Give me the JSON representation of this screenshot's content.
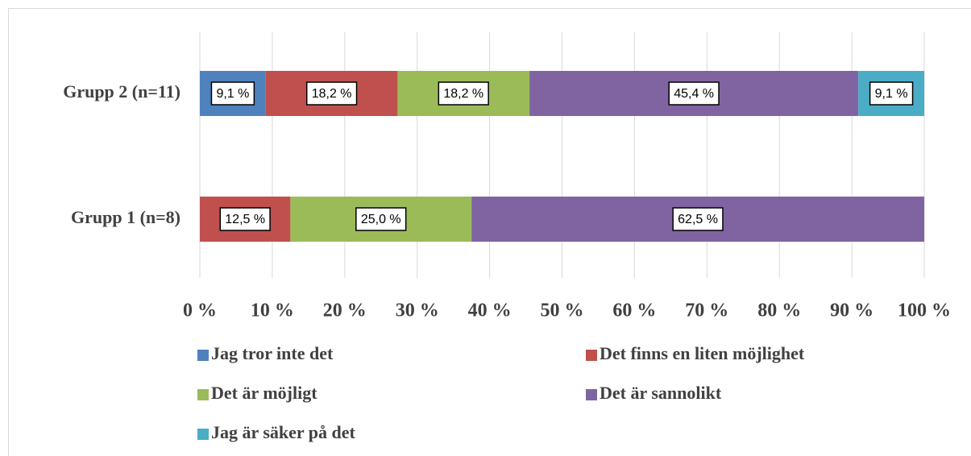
{
  "chart_data": {
    "type": "stacked-barh",
    "categories": [
      "Grupp 2 (n=11)",
      "Grupp 1 (n=8)"
    ],
    "series": [
      {
        "name": "Jag tror inte det",
        "color": "#4f81bd",
        "values": [
          9.1,
          null
        ],
        "value_labels": [
          "9,1 %",
          null
        ]
      },
      {
        "name": "Det finns en liten möjlighet",
        "color": "#c0504d",
        "values": [
          18.2,
          12.5
        ],
        "value_labels": [
          "18,2 %",
          "12,5 %"
        ]
      },
      {
        "name": "Det är möjligt",
        "color": "#9bbb59",
        "values": [
          18.2,
          25.0
        ],
        "value_labels": [
          "18,2 %",
          "25,0 %"
        ]
      },
      {
        "name": "Det är sannolikt",
        "color": "#8064a2",
        "values": [
          45.4,
          62.5
        ],
        "value_labels": [
          "45,4 %",
          "62,5 %"
        ]
      },
      {
        "name": "Jag är säker på det",
        "color": "#4bacc6",
        "values": [
          9.1,
          null
        ],
        "value_labels": [
          "9,1 %",
          null
        ]
      }
    ],
    "xlim": [
      0,
      100
    ],
    "xticks": [
      {
        "value": 0,
        "label": "0 %"
      },
      {
        "value": 10,
        "label": "10 %"
      },
      {
        "value": 20,
        "label": "20 %"
      },
      {
        "value": 30,
        "label": "30 %"
      },
      {
        "value": 40,
        "label": "40 %"
      },
      {
        "value": 50,
        "label": "50 %"
      },
      {
        "value": 60,
        "label": "60 %"
      },
      {
        "value": 70,
        "label": "70 %"
      },
      {
        "value": 80,
        "label": "80 %"
      },
      {
        "value": 90,
        "label": "90 %"
      },
      {
        "value": 100,
        "label": "100 %"
      }
    ],
    "grid": true,
    "legend": "bottom"
  }
}
